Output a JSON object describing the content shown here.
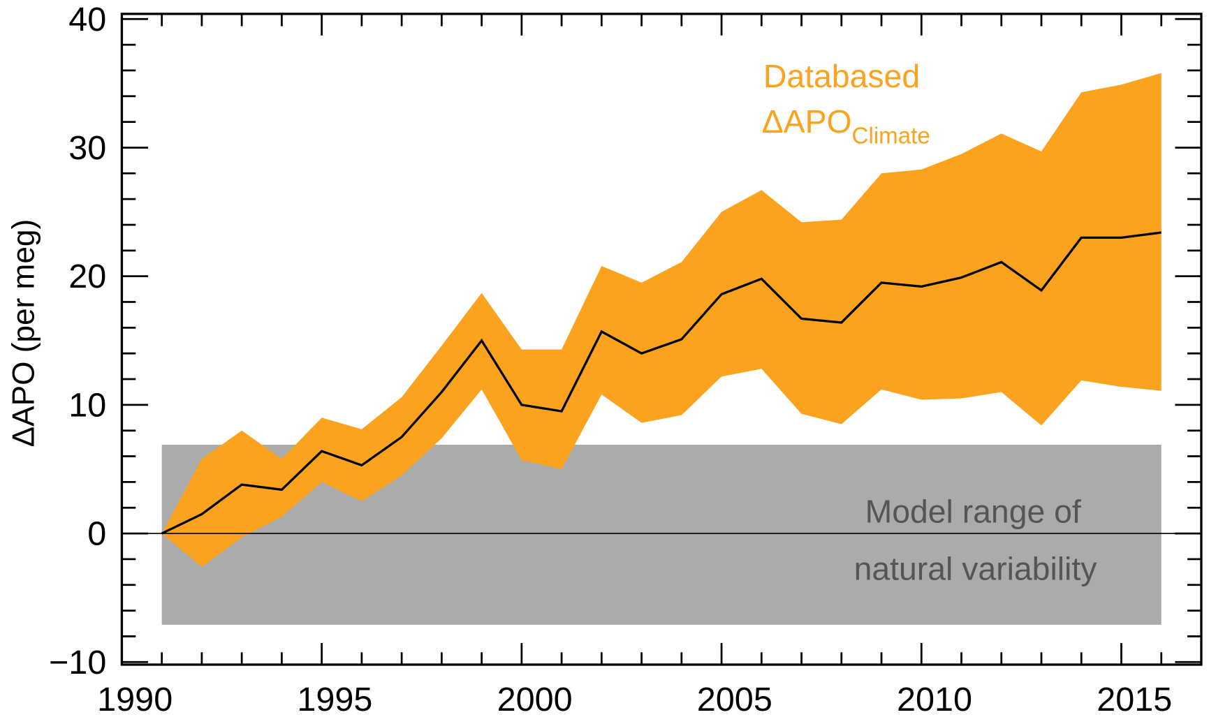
{
  "chart_data": {
    "type": "area",
    "title": "",
    "xlabel": "",
    "ylabel": "ΔAPO (per meg)",
    "xlim": [
      1990,
      2017
    ],
    "ylim": [
      -10.2,
      40.4
    ],
    "xticks": [
      1990,
      1995,
      2000,
      2005,
      2010,
      2015
    ],
    "xtick_labels": [
      "1990",
      "1995",
      "2000",
      "2005",
      "2010",
      "2015"
    ],
    "yticks": [
      -10,
      0,
      10,
      20,
      30,
      40
    ],
    "ytick_labels": [
      "−10",
      "0",
      "10",
      "20",
      "30",
      "40"
    ],
    "grid": false,
    "x": [
      1991,
      1992,
      1993,
      1994,
      1995,
      1996,
      1997,
      1998,
      1999,
      2000,
      2001,
      2002,
      2003,
      2004,
      2005,
      2006,
      2007,
      2008,
      2009,
      2010,
      2011,
      2012,
      2013,
      2014,
      2015,
      2016
    ],
    "series": [
      {
        "name": "Databased ΔAPO Climate (central)",
        "color": "#000000",
        "values": [
          0,
          1.5,
          3.8,
          3.4,
          6.4,
          5.3,
          7.5,
          11.0,
          15.0,
          10.0,
          9.5,
          15.7,
          14.0,
          15.1,
          18.6,
          19.8,
          16.7,
          16.4,
          19.5,
          19.2,
          19.9,
          21.1,
          18.9,
          23.0,
          23.0,
          23.4
        ]
      },
      {
        "name": "Databased ΔAPO Climate upper bound",
        "color": "#FBA31F",
        "values": [
          0,
          5.8,
          8.0,
          5.8,
          9.0,
          8.1,
          10.6,
          14.6,
          18.7,
          14.3,
          14.3,
          20.8,
          19.5,
          21.1,
          25.0,
          26.7,
          24.2,
          24.4,
          28.0,
          28.3,
          29.5,
          31.1,
          29.7,
          34.3,
          34.9,
          35.8
        ]
      },
      {
        "name": "Databased ΔAPO Climate lower bound",
        "color": "#FBA31F",
        "values": [
          0,
          -2.6,
          -0.3,
          1.3,
          4.0,
          2.5,
          4.5,
          7.4,
          11.2,
          5.7,
          5.0,
          10.8,
          8.6,
          9.2,
          12.2,
          12.8,
          9.3,
          8.5,
          11.2,
          10.4,
          10.5,
          11.0,
          8.4,
          11.9,
          11.4,
          11.1
        ]
      }
    ],
    "natural_variability_range": {
      "x": [
        1991,
        2016
      ],
      "y": [
        -7.1,
        6.9
      ],
      "color": "#ABABAB"
    },
    "annotations": {
      "orange_line1": "Databased",
      "orange_main": "ΔAPO",
      "orange_sub": "Climate",
      "gray_line1": "Model range of",
      "gray_line2": "natural variability"
    },
    "colors": {
      "band": "#FBA31F",
      "model": "#ABABAB",
      "model_text": "#555555"
    }
  }
}
